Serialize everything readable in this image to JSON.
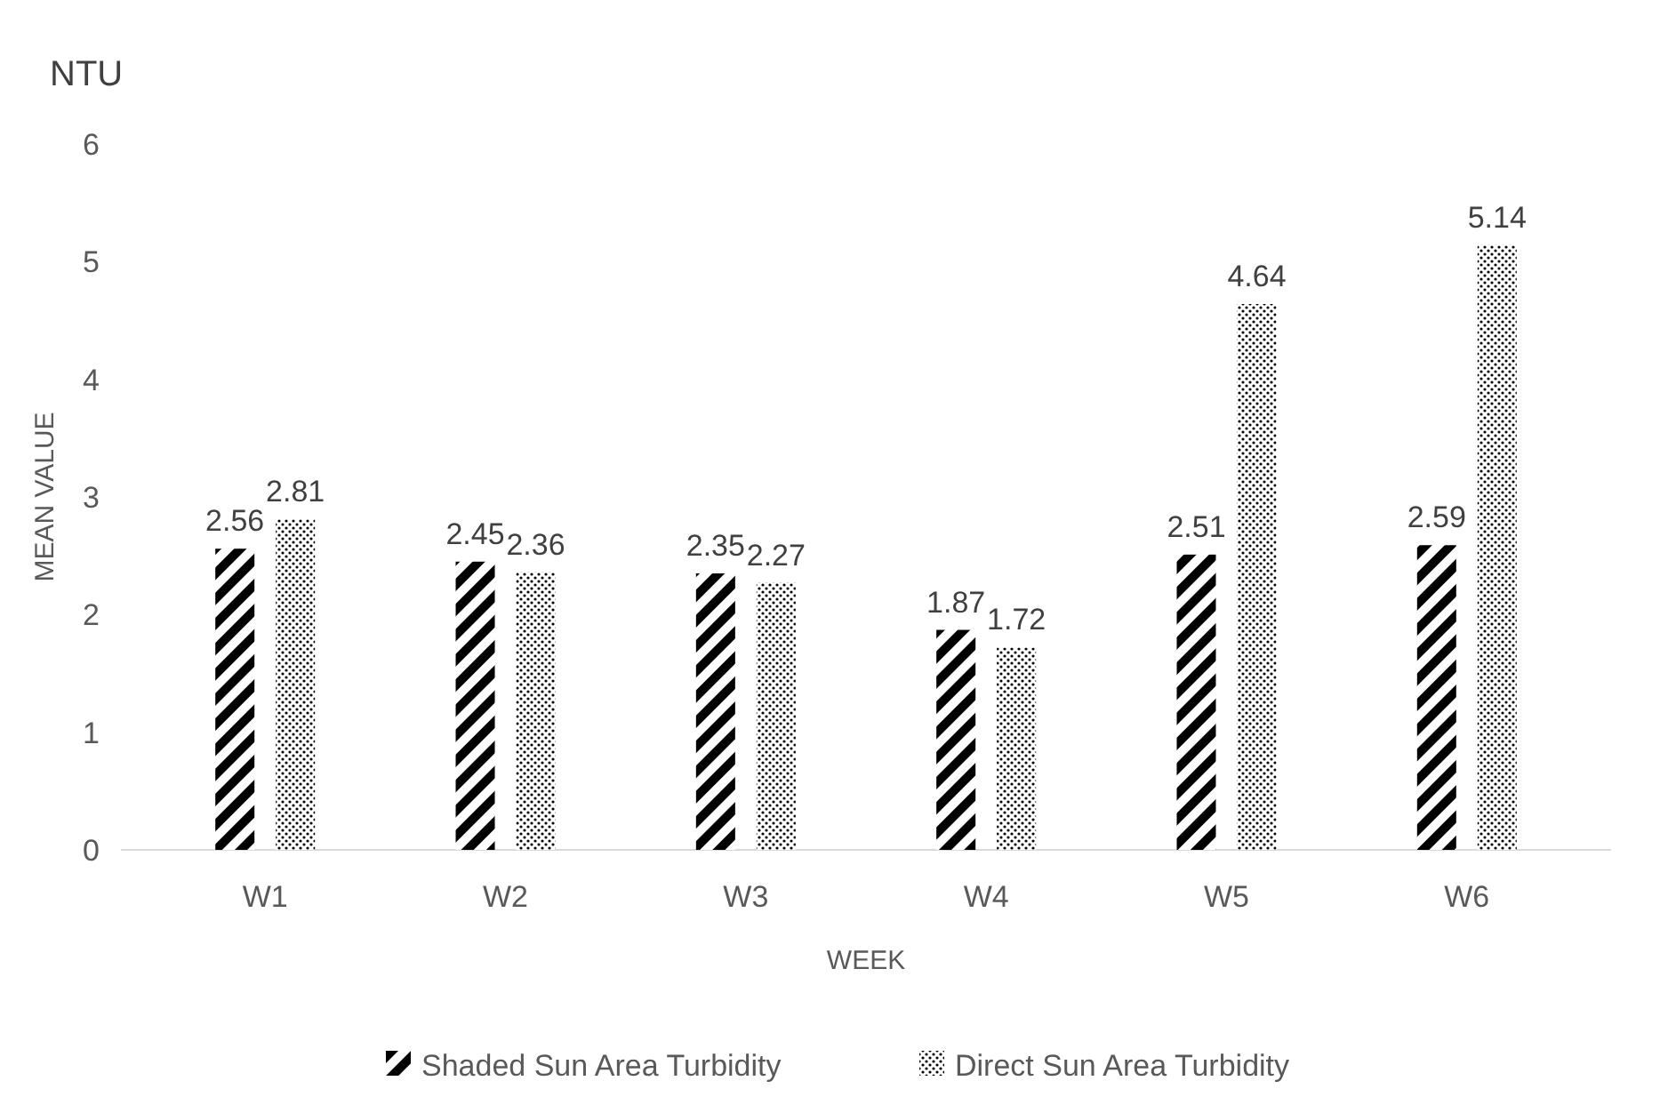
{
  "chart_data": {
    "type": "bar",
    "title": "NTU",
    "xlabel": "WEEK",
    "ylabel": "MEAN VALUE",
    "categories": [
      "W1",
      "W2",
      "W3",
      "W4",
      "W5",
      "W6"
    ],
    "series": [
      {
        "name": "Shaded Sun Area Turbidity",
        "color": "#000000",
        "values": [
          2.56,
          2.45,
          2.35,
          1.87,
          2.51,
          2.59
        ]
      },
      {
        "name": "Direct Sun Area Turbidity",
        "color": "#000000",
        "values": [
          2.81,
          2.36,
          2.27,
          1.72,
          4.64,
          5.14
        ]
      }
    ],
    "ylim": [
      0,
      6
    ],
    "yticks": [
      0,
      1,
      2,
      3,
      4,
      5,
      6
    ],
    "data_labels": true,
    "legend": "bottom"
  }
}
